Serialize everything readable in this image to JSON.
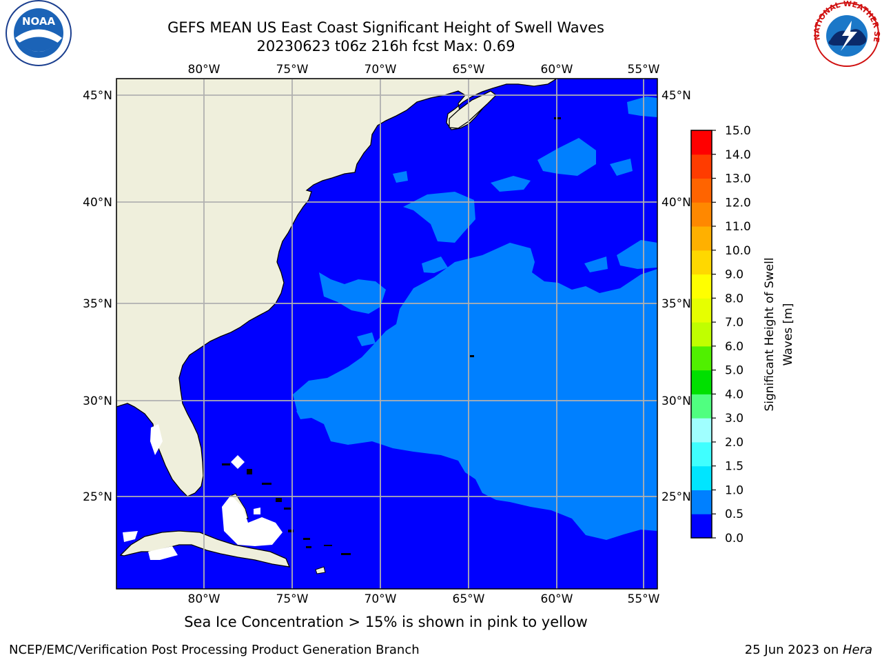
{
  "title": {
    "line1": "GEFS MEAN US East Coast Significant Height of Swell Waves",
    "line2": "20230623 t06z 216h fcst    Max: 0.69"
  },
  "map": {
    "longitude_labels": [
      "80°W",
      "75°W",
      "70°W",
      "65°W",
      "60°W",
      "55°W"
    ],
    "latitude_labels": [
      "45°N",
      "40°N",
      "35°N",
      "30°N",
      "25°N"
    ]
  },
  "colorbar": {
    "label_line1": "Significant Height of Swell",
    "label_line2": "Waves [m]",
    "ticks": [
      "0.0",
      "0.5",
      "1.0",
      "1.5",
      "2.0",
      "3.0",
      "4.0",
      "5.0",
      "6.0",
      "7.0",
      "8.0",
      "9.0",
      "10.0",
      "11.0",
      "12.0",
      "13.0",
      "14.0",
      "15.0"
    ],
    "colors": [
      "#0000ff",
      "#0080ff",
      "#00e5ff",
      "#40ffff",
      "#a0ffff",
      "#50ff80",
      "#00e000",
      "#50f000",
      "#c0ff00",
      "#e6ff00",
      "#ffff00",
      "#ffd800",
      "#ffb000",
      "#ff8800",
      "#ff6400",
      "#ff3c00",
      "#ff0000"
    ]
  },
  "note": "Sea Ice Concentration > 15% is shown in pink to yellow",
  "footer": {
    "left": "NCEP/EMC/Verification Post Processing Product Generation Branch",
    "date": "25 Jun 2023 on ",
    "machine": "Hera"
  },
  "logos": {
    "noaa_text": "NOAA",
    "nws_text": "NATIONAL WEATHER SERVICE"
  }
}
